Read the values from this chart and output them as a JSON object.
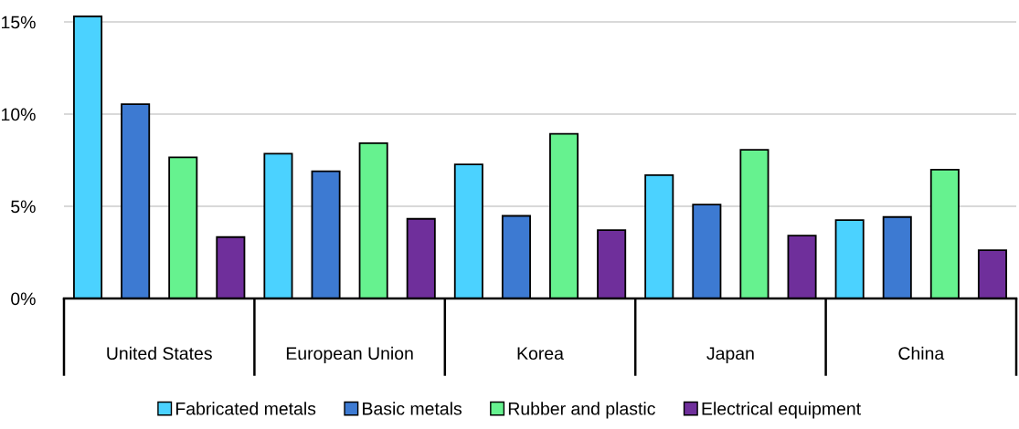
{
  "chart_data": {
    "type": "bar",
    "categories": [
      "United States",
      "European Union",
      "Korea",
      "Japan",
      "China"
    ],
    "series": [
      {
        "name": "Fabricated metals",
        "color": "#4bd2ff",
        "values": [
          15.3,
          7.85,
          7.27,
          6.69,
          4.25
        ]
      },
      {
        "name": "Basic metals",
        "color": "#3d7ad2",
        "values": [
          10.54,
          6.9,
          4.48,
          5.09,
          4.42
        ]
      },
      {
        "name": "Rubber and plastic",
        "color": "#66f28f",
        "values": [
          7.66,
          8.42,
          8.93,
          8.07,
          6.99
        ]
      },
      {
        "name": "Electrical equipment",
        "color": "#6f2f9b",
        "values": [
          3.33,
          4.32,
          3.71,
          3.41,
          2.62
        ]
      }
    ],
    "ylim": [
      0,
      15.4
    ],
    "yticks": [
      {
        "value": 0,
        "label": "0%"
      },
      {
        "value": 5,
        "label": "5%"
      },
      {
        "value": 10,
        "label": "10%"
      },
      {
        "value": 15,
        "label": "15%"
      }
    ],
    "grid": "y",
    "legend": "bottom"
  }
}
